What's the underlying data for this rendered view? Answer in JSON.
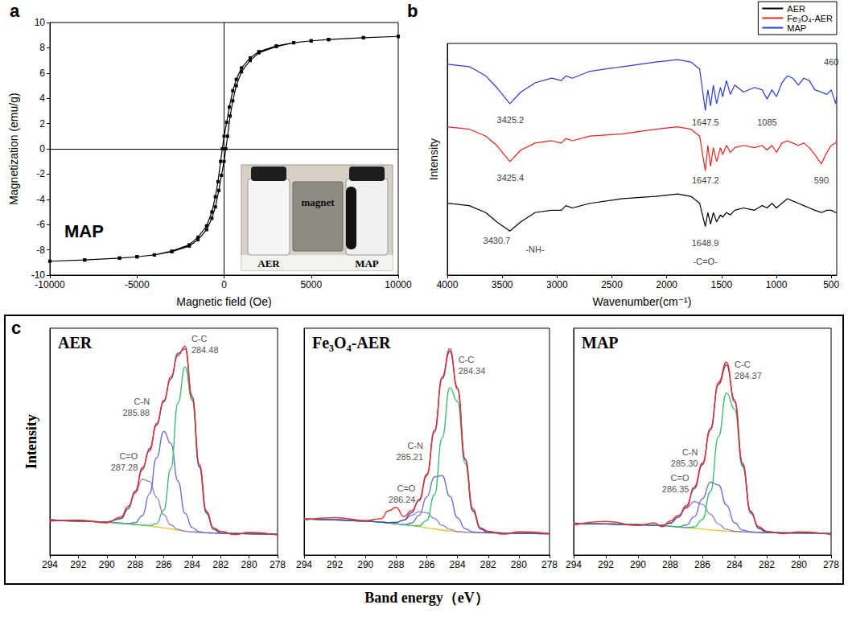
{
  "chart_data": [
    {
      "type": "line",
      "panel": "a",
      "xlabel": "Magnetic field (Oe)",
      "ylabel": "Magnetization (emu/g)",
      "annotations": [
        {
          "text": "MAP"
        }
      ],
      "inset_labels": [
        "magnet",
        "AER",
        "MAP"
      ],
      "x": [
        10000,
        8000,
        6000,
        5000,
        4000,
        3000,
        2000,
        1500,
        1000,
        700,
        500,
        300,
        150,
        0,
        -100,
        -200,
        -350,
        -500,
        -700,
        -1000,
        -1500,
        -2000,
        -3000,
        -4000,
        -5000,
        -6000,
        -8000,
        -10000,
        -8000,
        -6000,
        -5000,
        -4000,
        -3000,
        -2000,
        -1500,
        -1000,
        -700,
        -500,
        -300,
        -150,
        0,
        100,
        200,
        350,
        500,
        700,
        1000,
        1500,
        2000,
        3000,
        4000,
        5000,
        6000,
        8000,
        10000
      ],
      "values": [
        8.9,
        8.8,
        8.65,
        8.55,
        8.4,
        8.15,
        7.7,
        7.2,
        6.4,
        5.5,
        4.6,
        3.3,
        2.1,
        1.0,
        0,
        -1.0,
        -2.6,
        -3.8,
        -5.0,
        -6.1,
        -7.0,
        -7.6,
        -8.1,
        -8.4,
        -8.55,
        -8.65,
        -8.8,
        -8.9,
        -8.8,
        -8.65,
        -8.55,
        -8.4,
        -8.15,
        -7.7,
        -7.2,
        -6.4,
        -5.5,
        -4.6,
        -3.3,
        -2.1,
        -1.0,
        0,
        1.0,
        2.6,
        3.8,
        5.0,
        6.1,
        7.0,
        7.6,
        8.1,
        8.4,
        8.55,
        8.65,
        8.8,
        8.9
      ],
      "color": "#000000",
      "marker": "square",
      "xlim": [
        -10000,
        10000
      ],
      "xticks": [
        -10000,
        -5000,
        0,
        5000,
        10000
      ],
      "ylim": [
        -10,
        10
      ],
      "yticks": [
        -10,
        -8,
        -6,
        -4,
        -2,
        0,
        2,
        4,
        6,
        8,
        10
      ],
      "grid": false
    },
    {
      "type": "line",
      "panel": "b",
      "xlabel": "Wavenumber(cm⁻¹)",
      "ylabel": "Intensity",
      "tick_labels": "x",
      "legend": "upper right",
      "grid": false,
      "xlim": [
        4000,
        450
      ],
      "xticks": [
        4000,
        3500,
        3000,
        2500,
        2000,
        1500,
        1000,
        500
      ],
      "ylim": [
        0,
        100
      ],
      "x": [
        4000,
        3800,
        3650,
        3550,
        3430,
        3330,
        3200,
        3050,
        2960,
        2920,
        2860,
        2700,
        2400,
        2100,
        1900,
        1780,
        1700,
        1648,
        1625,
        1600,
        1575,
        1545,
        1510,
        1490,
        1455,
        1420,
        1380,
        1300,
        1200,
        1130,
        1085,
        1040,
        1000,
        950,
        900,
        850,
        800,
        750,
        700,
        650,
        590,
        540,
        500,
        460,
        450
      ],
      "series": [
        {
          "name": "AER",
          "color": "#000000",
          "values": [
            31,
            30,
            27,
            23,
            19,
            23,
            27,
            28,
            28,
            30,
            29,
            31,
            33,
            34,
            35,
            34,
            31,
            21,
            27,
            22,
            27,
            23,
            26,
            25,
            27,
            26,
            28,
            29,
            28,
            30,
            29,
            31,
            29,
            31,
            33,
            32,
            31,
            30,
            29,
            28,
            27,
            28,
            28,
            27,
            27
          ]
        },
        {
          "name": "Fe₃O₄-AER",
          "color": "#e8221c",
          "values": [
            64,
            63,
            60,
            56,
            49,
            54,
            57,
            58,
            57,
            59,
            58,
            60,
            61,
            63,
            64,
            63,
            60,
            45,
            56,
            47,
            55,
            49,
            55,
            52,
            56,
            53,
            55,
            56,
            55,
            56,
            54,
            56,
            53,
            57,
            58,
            57,
            56,
            57,
            55,
            52,
            48,
            53,
            56,
            57,
            58
          ]
        },
        {
          "name": "MAP",
          "color": "#2b3bd6",
          "values": [
            91,
            90,
            86,
            81,
            74,
            79,
            83,
            85,
            84,
            86,
            85,
            88,
            90,
            92,
            93,
            92,
            89,
            71,
            80,
            73,
            82,
            74,
            81,
            77,
            84,
            78,
            82,
            79,
            81,
            80,
            76,
            80,
            77,
            83,
            86,
            85,
            82,
            85,
            84,
            80,
            79,
            78,
            80,
            74,
            77
          ]
        }
      ],
      "annotations": [
        {
          "text": "3425.2",
          "x": 3425.2,
          "y": 67
        },
        {
          "text": "1647.5",
          "x": 1647.5,
          "y": 66
        },
        {
          "text": "1085",
          "x": 1085,
          "y": 66
        },
        {
          "text": "460",
          "x": 500,
          "y": 92
        },
        {
          "text": "3425.4",
          "x": 3425.4,
          "y": 42
        },
        {
          "text": "1647.2",
          "x": 1647.2,
          "y": 41
        },
        {
          "text": "590",
          "x": 590,
          "y": 41
        },
        {
          "text": "3430.7",
          "x": 3550,
          "y": 15
        },
        {
          "text": "-NH-",
          "x": 3200,
          "y": 11
        },
        {
          "text": "1648.9",
          "x": 1648.9,
          "y": 14
        },
        {
          "text": "-C=O-",
          "x": 1648.9,
          "y": 6
        }
      ]
    },
    {
      "type": "line",
      "title": "AER",
      "tick_labels": "x",
      "grid": false,
      "xlim": [
        294,
        278
      ],
      "xticks": [
        294,
        292,
        290,
        288,
        286,
        284,
        282,
        280,
        278
      ],
      "ylim": [
        0,
        100
      ],
      "x": [
        294,
        292,
        290,
        289,
        288.5,
        288,
        287.5,
        287,
        286.5,
        286,
        285.5,
        285,
        284.5,
        284,
        283.5,
        283,
        282.5,
        282,
        281,
        280,
        278
      ],
      "series": [
        {
          "color": "#e8322a",
          "values": [
            15.0,
            15.4,
            14.2,
            16.8,
            21.5,
            27.5,
            38.5,
            46,
            58,
            67.5,
            78.5,
            88,
            92,
            69,
            40,
            19.5,
            12,
            10.5,
            9.0,
            10.0,
            8.8
          ]
        },
        {
          "color": "#4a4ab0",
          "values": [
            15.5,
            15,
            14.6,
            16.1,
            20.5,
            28.3,
            37.6,
            46.9,
            57.3,
            68.1,
            77.6,
            88.9,
            90.9,
            70.1,
            39,
            18.6,
            11.4,
            9.8,
            9.5,
            9.4,
            9.2
          ]
        },
        {
          "name": "C-C",
          "center": {
            "value": 284.48,
            "label": "284.48"
          },
          "color": "#3dbf73",
          "values": [
            15.5,
            15,
            14.5,
            14,
            13.8,
            13.5,
            13.2,
            13,
            13.8,
            19.8,
            38.1,
            67,
            83,
            68.2,
            38.7,
            18.6,
            11.4,
            9.8,
            9.5,
            9.4,
            9.2
          ]
        },
        {
          "name": "C-N",
          "center": {
            "value": 285.88,
            "label": "285.88"
          },
          "color": "#6f6fd6",
          "values": [
            15.5,
            15,
            14.5,
            14,
            13.9,
            14.3,
            17.4,
            27,
            42.9,
            54.5,
            49.2,
            32.6,
            18.4,
            12.1,
            10.3,
            9.8,
            9.7,
            9.6,
            9.5,
            9.4,
            9.2
          ]
        },
        {
          "name": "C=O",
          "center": {
            "value": 287.28,
            "label": "287.28"
          },
          "color": "#9a84c8",
          "values": [
            15.5,
            15,
            14.6,
            16.1,
            20.4,
            27.5,
            33.4,
            32.5,
            25.4,
            17.8,
            13.3,
            11.3,
            10.5,
            10.2,
            10,
            9.8,
            9.7,
            9.6,
            9.5,
            9.4,
            9.2
          ]
        },
        {
          "color": "#e8c53a",
          "values": [
            15.5,
            15,
            14.5,
            14,
            13.8,
            13.5,
            13.2,
            12.8,
            12.4,
            12,
            11.5,
            11,
            10.5,
            10.2,
            10,
            9.8,
            9.7,
            9.6,
            9.5,
            9.4,
            9.2
          ]
        }
      ]
    },
    {
      "type": "line",
      "title": "Fe₃O₄-AER",
      "tick_labels": "x",
      "grid": false,
      "xlim": [
        294,
        278
      ],
      "xticks": [
        294,
        292,
        290,
        288,
        286,
        284,
        282,
        280,
        278
      ],
      "ylim": [
        0,
        100
      ],
      "x": [
        294,
        292,
        290,
        289,
        288.5,
        288,
        287.5,
        287,
        286.5,
        286,
        285.5,
        285,
        284.5,
        284,
        283.5,
        283,
        282.5,
        282,
        281,
        280,
        278
      ],
      "series": [
        {
          "color": "#e8322a",
          "values": [
            15.5,
            16.5,
            15.2,
            16,
            19.5,
            21,
            17,
            19.5,
            24,
            35,
            55,
            78.5,
            91,
            73,
            42.5,
            20.5,
            12,
            10.5,
            9.2,
            10.3,
            9.5
          ]
        },
        {
          "color": "#4a4ab0",
          "values": [
            16,
            15.5,
            15,
            14.5,
            14.3,
            14.4,
            15.4,
            18.6,
            24.5,
            35.6,
            54.2,
            77.8,
            89.8,
            73.9,
            41.9,
            19.6,
            11.5,
            10,
            9.7,
            9.6,
            9.4
          ]
        },
        {
          "name": "C-C",
          "center": {
            "value": 284.34,
            "label": "284.34"
          },
          "color": "#3dbf73",
          "values": [
            16,
            15.5,
            15,
            14.5,
            14.2,
            13.8,
            13.4,
            13,
            12.9,
            15.3,
            26.6,
            51.7,
            73.8,
            67.7,
            40.4,
            19.4,
            11.5,
            10,
            9.7,
            9.6,
            9.4
          ]
        },
        {
          "name": "C-N",
          "center": {
            "value": 285.21,
            "label": "285.21"
          },
          "color": "#6f6fd6",
          "values": [
            16,
            15.5,
            15,
            14.5,
            14.2,
            13.8,
            13.4,
            14.1,
            17.5,
            25.7,
            34.5,
            35,
            25.9,
            16.4,
            11.6,
            10.2,
            9.9,
            9.8,
            9.7,
            9.6,
            9.4
          ]
        },
        {
          "name": "C=O",
          "center": {
            "value": 286.24,
            "label": "286.24"
          },
          "color": "#9a84c8",
          "values": [
            16,
            15.5,
            15,
            14.5,
            14.2,
            14.4,
            15.4,
            17.5,
            19.1,
            18.6,
            16.1,
            13.1,
            11.3,
            10.4,
            10.1,
            10,
            9.9,
            9.8,
            9.7,
            9.6,
            9.4
          ]
        },
        {
          "color": "#e8c53a",
          "values": [
            16,
            15.5,
            15,
            14.5,
            14.2,
            13.8,
            13.4,
            13,
            12.5,
            12,
            11.5,
            11,
            10.6,
            10.3,
            10.1,
            10,
            9.9,
            9.8,
            9.7,
            9.6,
            9.4
          ]
        }
      ]
    },
    {
      "type": "line",
      "title": "MAP",
      "tick_labels": "x",
      "grid": false,
      "xlim": [
        294,
        278
      ],
      "xticks": [
        294,
        292,
        290,
        288,
        286,
        284,
        282,
        280,
        278
      ],
      "ylim": [
        0,
        100
      ],
      "x": [
        294,
        292,
        290,
        289,
        288.5,
        288,
        287.5,
        287,
        286.5,
        286,
        285.5,
        285,
        284.5,
        284,
        283.5,
        283,
        282.5,
        282,
        281,
        280,
        278
      ],
      "series": [
        {
          "color": "#e8322a",
          "values": [
            13.2,
            14.8,
            13,
            14.2,
            12.5,
            15,
            17.5,
            21,
            30,
            40.5,
            55,
            76,
            85,
            67.5,
            40.5,
            18.5,
            12.5,
            10.5,
            9.4,
            10.2,
            9
          ]
        },
        {
          "color": "#4a4ab0",
          "values": [
            14,
            13.7,
            13.4,
            13.1,
            13.2,
            14.1,
            16.7,
            21.8,
            29.3,
            39.8,
            55.9,
            75.2,
            83.8,
            68.4,
            39.7,
            19.3,
            11.8,
            10.1,
            9.8,
            9.7,
            9.5
          ]
        },
        {
          "name": "C-C",
          "center": {
            "value": 284.37,
            "label": "284.37"
          },
          "color": "#3dbf73",
          "values": [
            14,
            13.7,
            13.4,
            13.1,
            12.9,
            12.7,
            12.4,
            12.1,
            12.4,
            15.6,
            27.9,
            52.2,
            71.5,
            64.3,
            38.9,
            19.2,
            11.8,
            10.1,
            9.8,
            9.7,
            9.5
          ]
        },
        {
          "name": "C-N",
          "center": {
            "value": 285.3,
            "label": "285.30"
          },
          "color": "#6f6fd6",
          "values": [
            14,
            13.7,
            13.4,
            13.1,
            12.9,
            12.7,
            12.4,
            13.2,
            16.9,
            24.8,
            32.2,
            30.9,
            22,
            14.2,
            11,
            10.2,
            10,
            9.9,
            9.8,
            9.7,
            9.5
          ]
        },
        {
          "name": "C=O",
          "center": {
            "value": 286.35,
            "label": "286.35"
          },
          "color": "#9a84c8",
          "values": [
            14,
            13.7,
            13.4,
            13.1,
            13.2,
            14.1,
            16.7,
            20.7,
            23.6,
            22.4,
            18,
            13.7,
            11.3,
            10.5,
            10.2,
            10.1,
            10,
            9.9,
            9.8,
            9.7,
            9.5
          ]
        },
        {
          "color": "#e8c53a",
          "values": [
            14,
            13.7,
            13.4,
            13.1,
            12.9,
            12.7,
            12.4,
            12.1,
            11.8,
            11.5,
            11.1,
            10.8,
            10.5,
            10.3,
            10.2,
            10.1,
            10,
            9.9,
            9.8,
            9.7,
            9.5
          ]
        }
      ]
    }
  ],
  "panel_c": {
    "label": "c",
    "xlabel": "Band energy（eV）",
    "ylabel": "Intensity"
  }
}
